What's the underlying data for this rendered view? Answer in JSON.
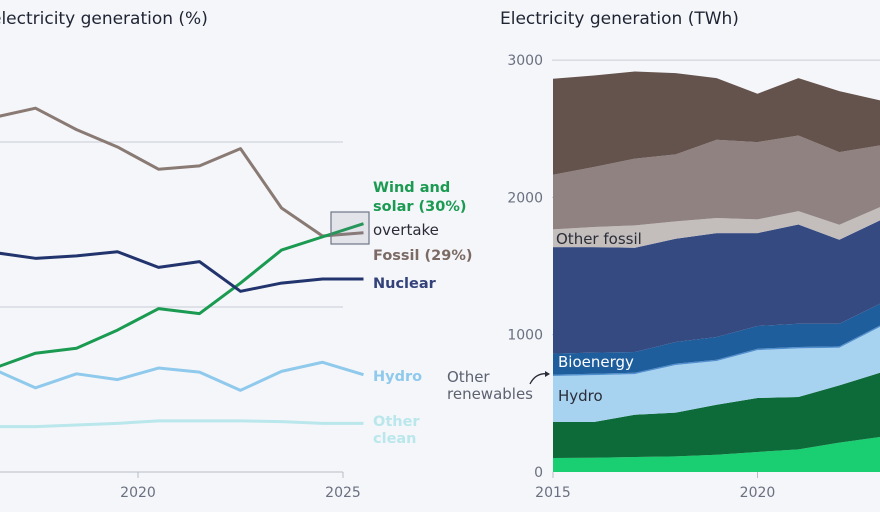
{
  "chart_data": [
    {
      "type": "line",
      "title": "electricity generation (%)",
      "x": [
        2016.5,
        2017.5,
        2018.5,
        2019.5,
        2020.5,
        2021.5,
        2022.5,
        2023.5,
        2024.5,
        2025.5
      ],
      "xticks": [
        "2020",
        "2025"
      ],
      "xtick_values": [
        2020,
        2025
      ],
      "ylim": [
        0,
        60
      ],
      "ygrid": [
        20,
        40
      ],
      "grid": true,
      "series": [
        {
          "key": "fossil",
          "name": "Fossil (29%)",
          "color": "#8a7a74",
          "values": [
            43.0,
            44.1,
            41.5,
            39.4,
            36.7,
            37.1,
            39.2,
            32.0,
            28.6,
            29.0
          ]
        },
        {
          "key": "wind_solar",
          "name": "Wind and solar (30%)",
          "name_lines": [
            "Wind and",
            "solar (30%)"
          ],
          "color": "#1b9a52",
          "values": [
            12.6,
            14.4,
            15.0,
            17.2,
            19.8,
            19.2,
            22.9,
            26.9,
            28.5,
            30.1
          ]
        },
        {
          "key": "nuclear",
          "name": "Nuclear",
          "color": "#22346d",
          "values": [
            26.6,
            25.9,
            26.2,
            26.7,
            24.8,
            25.5,
            21.9,
            22.9,
            23.4,
            23.4
          ]
        },
        {
          "key": "hydro",
          "name": "Hydro",
          "color": "#8fc9ec",
          "values": [
            12.4,
            10.2,
            11.9,
            11.2,
            12.6,
            12.1,
            9.9,
            12.2,
            13.3,
            11.8
          ]
        },
        {
          "key": "other_clean",
          "name": "Other clean",
          "name_lines": [
            "Other",
            "clean"
          ],
          "color": "#b9e7ec",
          "values": [
            5.5,
            5.5,
            5.7,
            5.9,
            6.2,
            6.2,
            6.2,
            6.1,
            5.9,
            5.9
          ]
        }
      ],
      "annotation": "overtake"
    },
    {
      "type": "area",
      "stacked": true,
      "title": "Electricity generation (TWh)",
      "x": [
        2015,
        2016,
        2017,
        2018,
        2019,
        2020,
        2021,
        2022,
        2023
      ],
      "xticks": [
        "2015",
        "2020"
      ],
      "xtick_values": [
        2015,
        2020
      ],
      "yticks": [
        "0",
        "1000",
        "2000",
        "3000"
      ],
      "ytick_values": [
        0,
        1000,
        2000,
        3000
      ],
      "ylim": [
        0,
        3000
      ],
      "grid": true,
      "series": [
        {
          "key": "solar",
          "color": "#19cf72",
          "values": [
            102,
            104,
            109,
            114,
            126,
            146,
            165,
            214,
            255
          ]
        },
        {
          "key": "wind",
          "color": "#0c6b39",
          "values": [
            262,
            260,
            308,
            318,
            364,
            393,
            381,
            417,
            468
          ]
        },
        {
          "key": "hydro",
          "name": "Hydro",
          "color": "#a7d2f0",
          "values": [
            335,
            342,
            296,
            347,
            318,
            349,
            354,
            274,
            335
          ]
        },
        {
          "key": "other_renewables",
          "name": "Other renewables",
          "name_lines": [
            "Other",
            "renewables"
          ],
          "color": "#4f8fcf",
          "values": [
            10,
            10,
            10,
            10,
            10,
            10,
            10,
            10,
            10
          ]
        },
        {
          "key": "bioenergy",
          "name": "Bioenergy",
          "color": "#1f5e9c",
          "values": [
            153,
            153,
            151,
            158,
            165,
            165,
            170,
            165,
            158
          ]
        },
        {
          "key": "nuclear",
          "color": "#344a81",
          "values": [
            776,
            769,
            759,
            752,
            757,
            677,
            723,
            612,
            607
          ]
        },
        {
          "key": "other_fossil",
          "name": "Other fossil",
          "color": "#c3bdbc",
          "values": [
            129,
            146,
            163,
            126,
            110,
            100,
            97,
            109,
            97
          ]
        },
        {
          "key": "gas",
          "color": "#8f8280",
          "values": [
            398,
            437,
            486,
            488,
            570,
            563,
            551,
            529,
            449
          ]
        },
        {
          "key": "coal",
          "color": "#64524c",
          "values": [
            699,
            667,
            635,
            592,
            449,
            352,
            418,
            444,
            327
          ]
        }
      ]
    }
  ]
}
